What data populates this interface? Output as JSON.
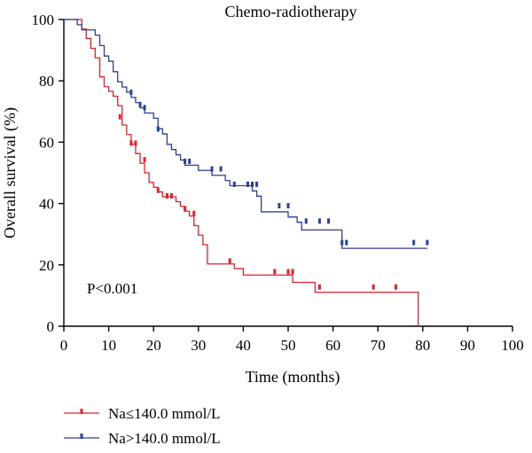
{
  "chart_data": {
    "type": "line",
    "title": "Chemo-radiotherapy",
    "xlabel": "Time (months)",
    "ylabel": "Overall survival (%)",
    "xlim": [
      0,
      100
    ],
    "ylim": [
      0,
      100
    ],
    "xticks": [
      "0",
      "10",
      "20",
      "30",
      "40",
      "50",
      "60",
      "70",
      "80",
      "90",
      "100"
    ],
    "yticks": [
      "0",
      "20",
      "40",
      "60",
      "80",
      "100"
    ],
    "annotation": "P<0.001",
    "grid": false,
    "legend_position": "bottom-left",
    "series": [
      {
        "name": "Na≤140.0 mmol/L",
        "color": "#e8202a",
        "steps": [
          [
            0,
            100
          ],
          [
            1,
            100
          ],
          [
            2,
            100
          ],
          [
            3,
            100
          ],
          [
            4,
            96.9
          ],
          [
            5,
            93.8
          ],
          [
            6,
            90.6
          ],
          [
            7,
            87.5
          ],
          [
            8,
            81.3
          ],
          [
            9,
            78.1
          ],
          [
            10,
            76.6
          ],
          [
            11,
            75
          ],
          [
            12,
            71.9
          ],
          [
            13,
            65.6
          ],
          [
            14,
            62.5
          ],
          [
            15,
            59.4
          ],
          [
            16,
            56.3
          ],
          [
            17,
            53.1
          ],
          [
            18,
            50
          ],
          [
            19,
            46.9
          ],
          [
            20,
            45.3
          ],
          [
            21,
            43.8
          ],
          [
            22,
            42.2
          ],
          [
            23,
            42.2
          ],
          [
            25,
            40.6
          ],
          [
            26,
            39.1
          ],
          [
            27,
            37.5
          ],
          [
            28,
            35.9
          ],
          [
            29,
            32.8
          ],
          [
            30,
            29.7
          ],
          [
            31,
            26.6
          ],
          [
            32,
            20.3
          ],
          [
            35,
            20.3
          ],
          [
            36,
            20.3
          ],
          [
            38,
            18.8
          ],
          [
            40,
            16.7
          ],
          [
            48,
            16.7
          ],
          [
            51,
            14.3
          ],
          [
            55,
            14.3
          ],
          [
            56,
            11.1
          ],
          [
            79,
            11.1
          ],
          [
            79,
            0
          ]
        ],
        "censored": [
          [
            12.5,
            68
          ],
          [
            15,
            59.4
          ],
          [
            16,
            59.4
          ],
          [
            18,
            54
          ],
          [
            21,
            44
          ],
          [
            23,
            42.2
          ],
          [
            24,
            42.2
          ],
          [
            27,
            38
          ],
          [
            29,
            36.5
          ],
          [
            37,
            21
          ],
          [
            47,
            17.5
          ],
          [
            50,
            17.5
          ],
          [
            51,
            17.5
          ],
          [
            57,
            12.5
          ],
          [
            69,
            12.5
          ],
          [
            74,
            12.5
          ]
        ]
      },
      {
        "name": "Na>140.0 mmol/L",
        "color": "#2a3f9e",
        "steps": [
          [
            0,
            100
          ],
          [
            2,
            100
          ],
          [
            3,
            98.3
          ],
          [
            4,
            96.6
          ],
          [
            6,
            96.6
          ],
          [
            7,
            94.9
          ],
          [
            8,
            91.5
          ],
          [
            9,
            88.1
          ],
          [
            10,
            86.4
          ],
          [
            11,
            83
          ],
          [
            12,
            79.7
          ],
          [
            13,
            78
          ],
          [
            14,
            76.3
          ],
          [
            15,
            74.6
          ],
          [
            16,
            72.9
          ],
          [
            17,
            71.2
          ],
          [
            18,
            69.5
          ],
          [
            20,
            67.8
          ],
          [
            21,
            64.4
          ],
          [
            22,
            62.7
          ],
          [
            23,
            59.3
          ],
          [
            24,
            57.6
          ],
          [
            25,
            55.9
          ],
          [
            26,
            54.2
          ],
          [
            27,
            52.5
          ],
          [
            30,
            50.8
          ],
          [
            33,
            49.2
          ],
          [
            36,
            47.5
          ],
          [
            37,
            45.8
          ],
          [
            42,
            44.1
          ],
          [
            43,
            42.4
          ],
          [
            44,
            37.3
          ],
          [
            49,
            37.3
          ],
          [
            50,
            35.6
          ],
          [
            52,
            33.9
          ],
          [
            53,
            31.4
          ],
          [
            60,
            31.4
          ],
          [
            62,
            25.4
          ],
          [
            81,
            25.4
          ]
        ],
        "censored": [
          [
            15,
            76
          ],
          [
            17,
            72
          ],
          [
            18,
            71
          ],
          [
            21,
            64
          ],
          [
            27,
            53.5
          ],
          [
            28,
            53.5
          ],
          [
            33,
            51
          ],
          [
            35,
            51
          ],
          [
            38,
            46
          ],
          [
            41,
            46
          ],
          [
            42,
            46
          ],
          [
            43,
            46
          ],
          [
            48,
            39
          ],
          [
            50,
            39
          ],
          [
            54,
            34
          ],
          [
            57,
            34
          ],
          [
            59,
            34
          ],
          [
            62,
            27
          ],
          [
            63,
            27
          ],
          [
            78,
            27
          ],
          [
            81,
            27
          ]
        ]
      }
    ]
  }
}
